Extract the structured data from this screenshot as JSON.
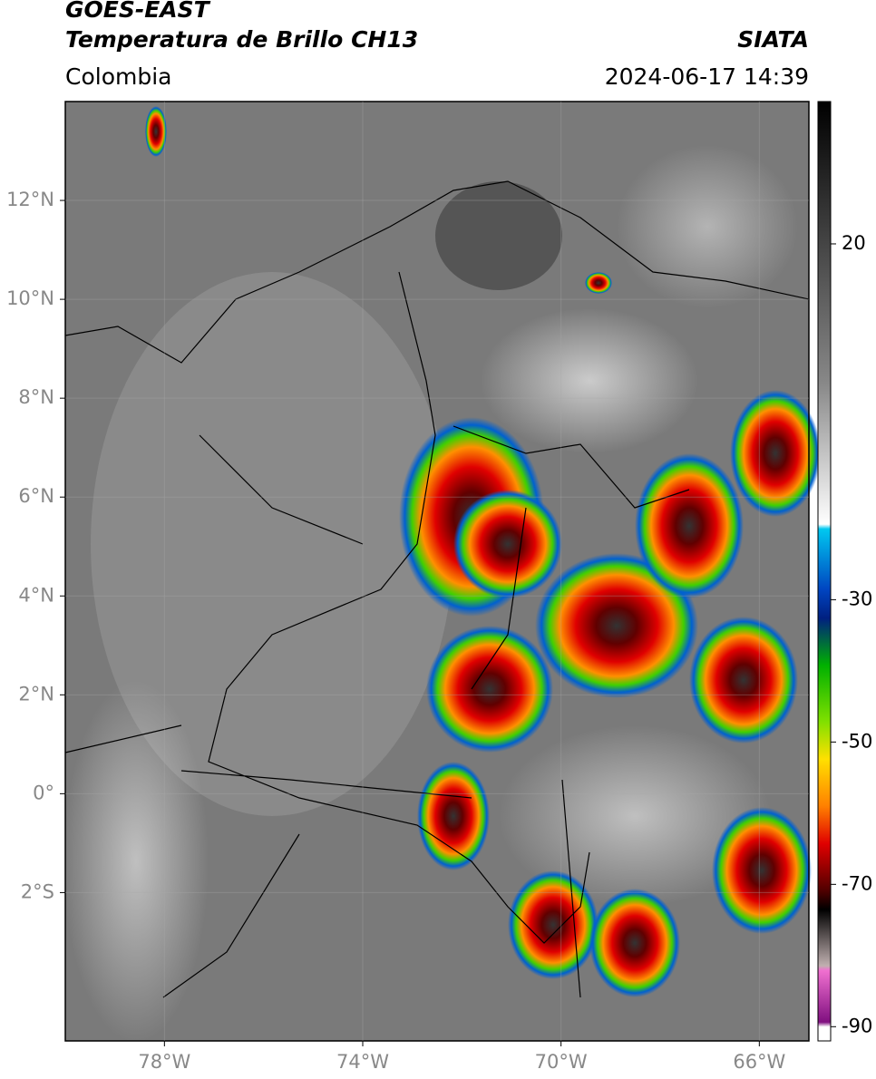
{
  "header": {
    "title": "GOES-EAST",
    "subtitle": "Temperatura de Brillo CH13",
    "source": "SIATA",
    "region": "Colombia",
    "datetime": "2024-06-17 14:39"
  },
  "map": {
    "xlim": [
      -80,
      -65
    ],
    "ylim": [
      -5,
      14
    ],
    "grid": true,
    "xticks": [
      {
        "value": -78,
        "label": "78°W"
      },
      {
        "value": -74,
        "label": "74°W"
      },
      {
        "value": -70,
        "label": "70°W"
      },
      {
        "value": -66,
        "label": "66°W"
      }
    ],
    "yticks": [
      {
        "value": 12,
        "label": "12°N"
      },
      {
        "value": 10,
        "label": "10°N"
      },
      {
        "value": 8,
        "label": "8°N"
      },
      {
        "value": 6,
        "label": "6°N"
      },
      {
        "value": 4,
        "label": "4°N"
      },
      {
        "value": 2,
        "label": "2°N"
      },
      {
        "value": 0,
        "label": "0°"
      },
      {
        "value": -2,
        "label": "2°S"
      }
    ]
  },
  "colorbar": {
    "lim": [
      -92,
      40
    ],
    "ticks": [
      20,
      -30,
      -50,
      -70,
      -90
    ]
  }
}
